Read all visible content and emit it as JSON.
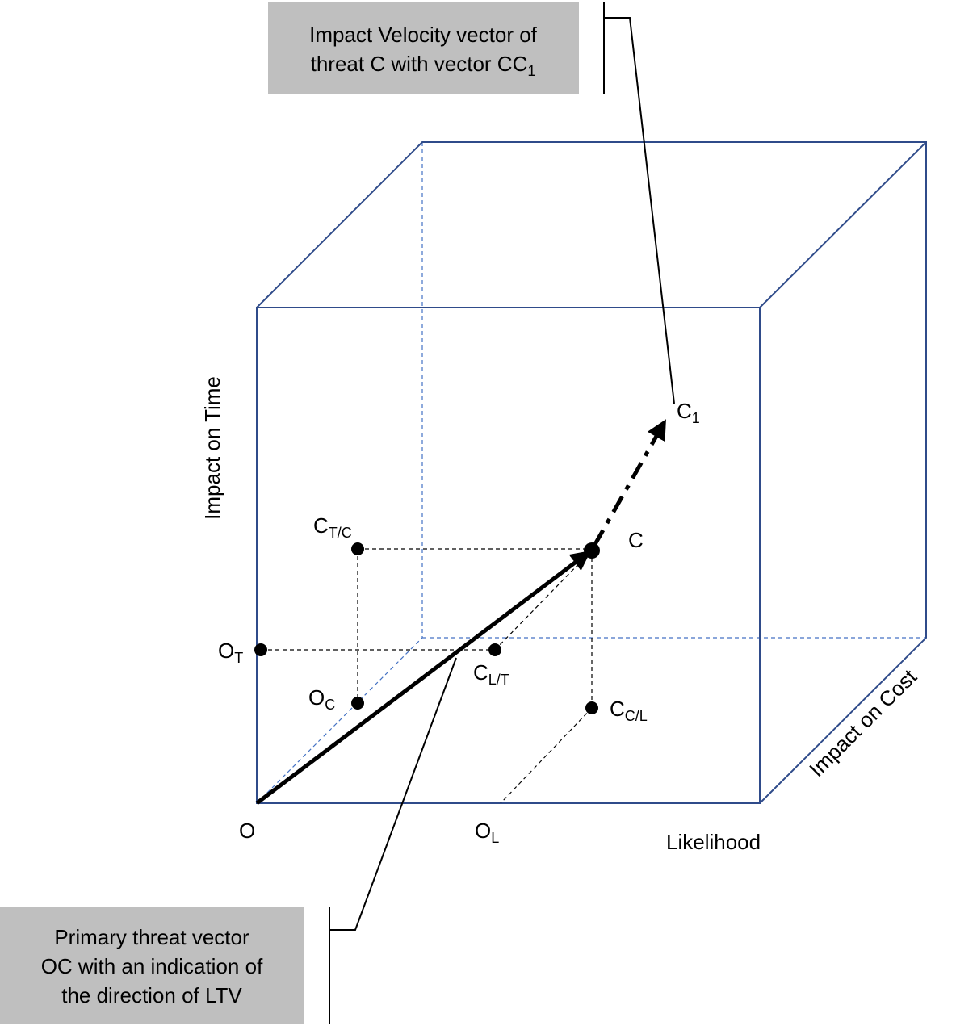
{
  "callouts": [
    {
      "lines": [
        "Impact Velocity vector of",
        "threat C with vector CC"
      ],
      "sub": "1"
    },
    {
      "lines": [
        "Primary threat vector",
        "OC with an indication of",
        "the direction of LTV"
      ]
    }
  ],
  "axes": {
    "x": "Likelihood",
    "y": "Impact on Time",
    "z": "Impact on Cost"
  },
  "points": {
    "C1": {
      "base": "C",
      "sub": "1"
    },
    "C": {
      "base": "C"
    },
    "CTC": {
      "base": "C",
      "sub": "T/C"
    },
    "OT": {
      "base": "O",
      "sub": "T"
    },
    "CLT": {
      "base": "C",
      "sub": "L/T"
    },
    "OC": {
      "base": "O",
      "sub": "C"
    },
    "CCL": {
      "base": "C",
      "sub": "C/L"
    },
    "O": {
      "base": "O"
    },
    "OL": {
      "base": "O",
      "sub": "L"
    }
  }
}
